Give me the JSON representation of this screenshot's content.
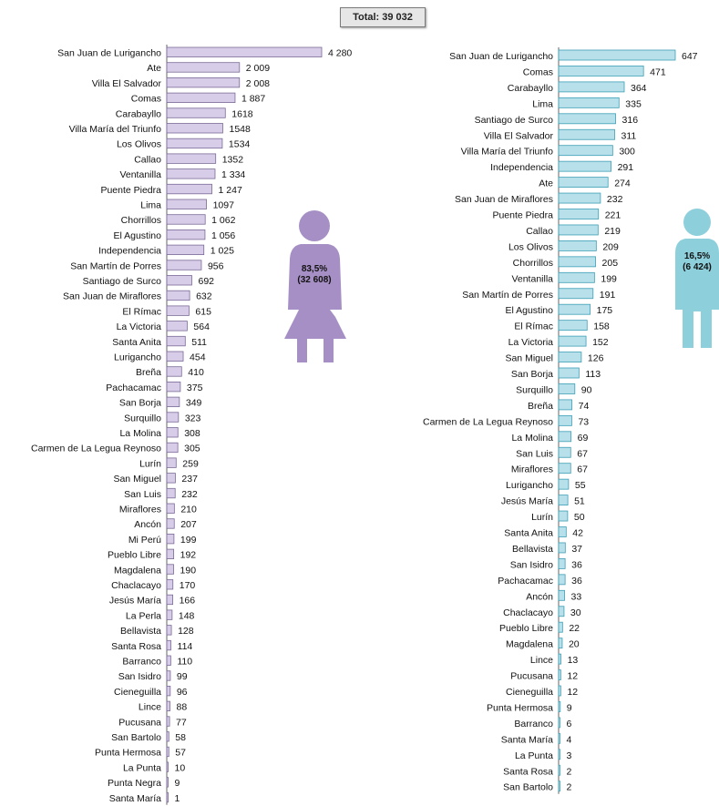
{
  "total_label": "Total: 39 032",
  "women_stat": {
    "percent": "83,5%",
    "count": "(32 608)"
  },
  "men_stat": {
    "percent": "16,5%",
    "count": "(6 424)"
  },
  "colors": {
    "women_bar": "#d8cde8",
    "women_border": "#7a6a96",
    "men_bar": "#b7e0ea",
    "men_border": "#3e9fb6",
    "women_icon": "#a68fc4",
    "men_icon": "#8ecfdc"
  },
  "chart_data": [
    {
      "type": "bar",
      "orientation": "horizontal",
      "categories": [
        "San Juan de Lurigancho",
        "Ate",
        "Villa El Salvador",
        "Comas",
        "Carabayllo",
        "Villa María del Triunfo",
        "Los Olivos",
        "Callao",
        "Ventanilla",
        "Puente Piedra",
        "Lima",
        "Chorrillos",
        "El Agustino",
        "Independencia",
        "San Martín de Porres",
        "Santiago de Surco",
        "San Juan de Miraflores",
        "El Rímac",
        "La Victoria",
        "Santa Anita",
        "Lurigancho",
        "Breña",
        "Pachacamac",
        "San Borja",
        "Surquillo",
        "La Molina",
        "Carmen de La Legua Reynoso",
        "Lurín",
        "San Miguel",
        "San Luis",
        "Miraflores",
        "Ancón",
        "Mi Perú",
        "Pueblo Libre",
        "Magdalena",
        "Chaclacayo",
        "Jesús María",
        "La Perla",
        "Bellavista",
        "Santa Rosa",
        "Barranco",
        "San Isidro",
        "Cieneguilla",
        "Lince",
        "Pucusana",
        "San Bartolo",
        "Punta Hermosa",
        "La Punta",
        "Punta Negra",
        "Santa María"
      ],
      "values": [
        4280,
        2009,
        2008,
        1887,
        1618,
        1548,
        1534,
        1352,
        1334,
        1247,
        1097,
        1062,
        1056,
        1025,
        956,
        692,
        632,
        615,
        564,
        511,
        454,
        410,
        375,
        349,
        323,
        308,
        305,
        259,
        237,
        232,
        210,
        207,
        199,
        192,
        190,
        170,
        166,
        148,
        128,
        114,
        110,
        99,
        96,
        88,
        77,
        58,
        57,
        10,
        9,
        1
      ],
      "value_labels": [
        "4 280",
        "2 009",
        "2 008",
        "1 887",
        "1618",
        "1548",
        "1534",
        "1352",
        "1 334",
        "1 247",
        "1097",
        "1 062",
        "1 056",
        "1 025",
        "956",
        "692",
        "632",
        "615",
        "564",
        "511",
        "454",
        "410",
        "375",
        "349",
        "323",
        "308",
        "305",
        "259",
        "237",
        "232",
        "210",
        "207",
        "199",
        "192",
        "190",
        "170",
        "166",
        "148",
        "128",
        "114",
        "110",
        "99",
        "96",
        "88",
        "77",
        "58",
        "57",
        "10",
        "9",
        "1"
      ]
    },
    {
      "type": "bar",
      "orientation": "horizontal",
      "categories": [
        "San Juan de Lurigancho",
        "Comas",
        "Carabayllo",
        "Lima",
        "Santiago de Surco",
        "Villa El Salvador",
        "Villa María del Triunfo",
        "Independencia",
        "Ate",
        "San Juan de Miraflores",
        "Puente Piedra",
        "Callao",
        "Los Olivos",
        "Chorrillos",
        "Ventanilla",
        "San Martín de Porres",
        "El Agustino",
        "El Rímac",
        "La Victoria",
        "San Miguel",
        "San Borja",
        "Surquillo",
        "Breña",
        "Carmen de La Legua Reynoso",
        "La Molina",
        "San Luis",
        "Miraflores",
        "Lurigancho",
        "Jesús María",
        "Lurín",
        "Santa Anita",
        "Bellavista",
        "San Isidro",
        "Pachacamac",
        "Ancón",
        "Chaclacayo",
        "Pueblo Libre",
        "Magdalena",
        "Lince",
        "Pucusana",
        "Cieneguilla",
        "Punta Hermosa",
        "Barranco",
        "Santa María",
        "La Punta",
        "Santa Rosa",
        "San Bartolo"
      ],
      "values": [
        647,
        471,
        364,
        335,
        316,
        311,
        300,
        291,
        274,
        232,
        221,
        219,
        209,
        205,
        199,
        191,
        175,
        158,
        152,
        126,
        113,
        90,
        74,
        73,
        69,
        67,
        67,
        55,
        51,
        50,
        42,
        37,
        36,
        36,
        33,
        30,
        22,
        20,
        13,
        12,
        12,
        9,
        6,
        4,
        3,
        2,
        2
      ],
      "value_labels": [
        "647",
        "471",
        "364",
        "335",
        "316",
        "311",
        "300",
        "291",
        "274",
        "232",
        "221",
        "219",
        "209",
        "205",
        "199",
        "191",
        "175",
        "158",
        "152",
        "126",
        "113",
        "90",
        "74",
        "73",
        "69",
        "67",
        "67",
        "55",
        "51",
        "50",
        "42",
        "37",
        "36",
        "36",
        "33",
        "30",
        "22",
        "20",
        "13",
        "12",
        "12",
        "9",
        "6",
        "4",
        "3",
        "2",
        "2"
      ]
    }
  ]
}
